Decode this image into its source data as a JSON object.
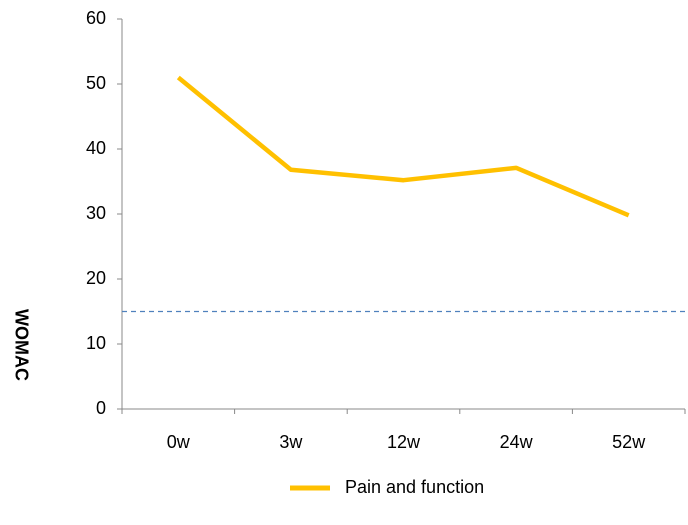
{
  "chart_data": {
    "type": "line",
    "ylabel": "WOMAC",
    "categories": [
      "0w",
      "3w",
      "12w",
      "24w",
      "52w"
    ],
    "series": [
      {
        "name": "Pain and function",
        "color": "#ffc000",
        "values": [
          51,
          36.8,
          35.2,
          37.1,
          29.8
        ]
      }
    ],
    "ylim": [
      0,
      60
    ],
    "yticks": [
      0,
      10,
      20,
      30,
      40,
      50,
      60
    ],
    "reference_line": {
      "value": 15,
      "color": "#4f81bd",
      "style": "dashed"
    },
    "legend": "bottom"
  }
}
